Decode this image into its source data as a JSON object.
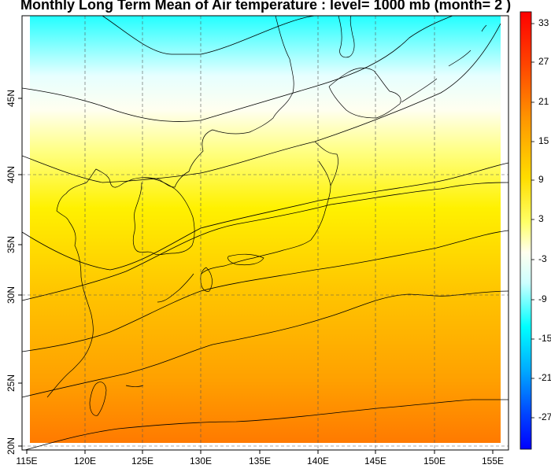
{
  "title": "Monthly Long Term Mean of Air temperature : level= 1000 mb (month= 2 )",
  "map": {
    "lon_range": [
      115,
      155
    ],
    "lat_range": [
      20,
      50
    ],
    "lon_ticks": [
      "115E",
      "120E",
      "125E",
      "130E",
      "135E",
      "140E",
      "145E",
      "150E",
      "155E"
    ],
    "lat_ticks": [
      "20N",
      "25N",
      "30N",
      "35N",
      "40N",
      "45N"
    ],
    "gridlines": "dashed",
    "field_colors": [
      "#ff7700",
      "#ffa600",
      "#ffc800",
      "#ffee00",
      "#ffff60",
      "#ffffe0",
      "#e8ffff",
      "#20ffff"
    ],
    "contour_color": "#000000",
    "coastline_color": "#000000"
  },
  "colorbar": {
    "labels": [
      "33",
      "27",
      "21",
      "15",
      "9",
      "3",
      "-3",
      "-9",
      "-15",
      "-21",
      "-27"
    ],
    "colors": [
      "#ff0000",
      "#ff4400",
      "#ff8800",
      "#ffcc00",
      "#ffff00",
      "#ffffcc",
      "#ccffff",
      "#00ffff",
      "#00aaff",
      "#0055ff",
      "#0000ff"
    ],
    "position": "right"
  }
}
